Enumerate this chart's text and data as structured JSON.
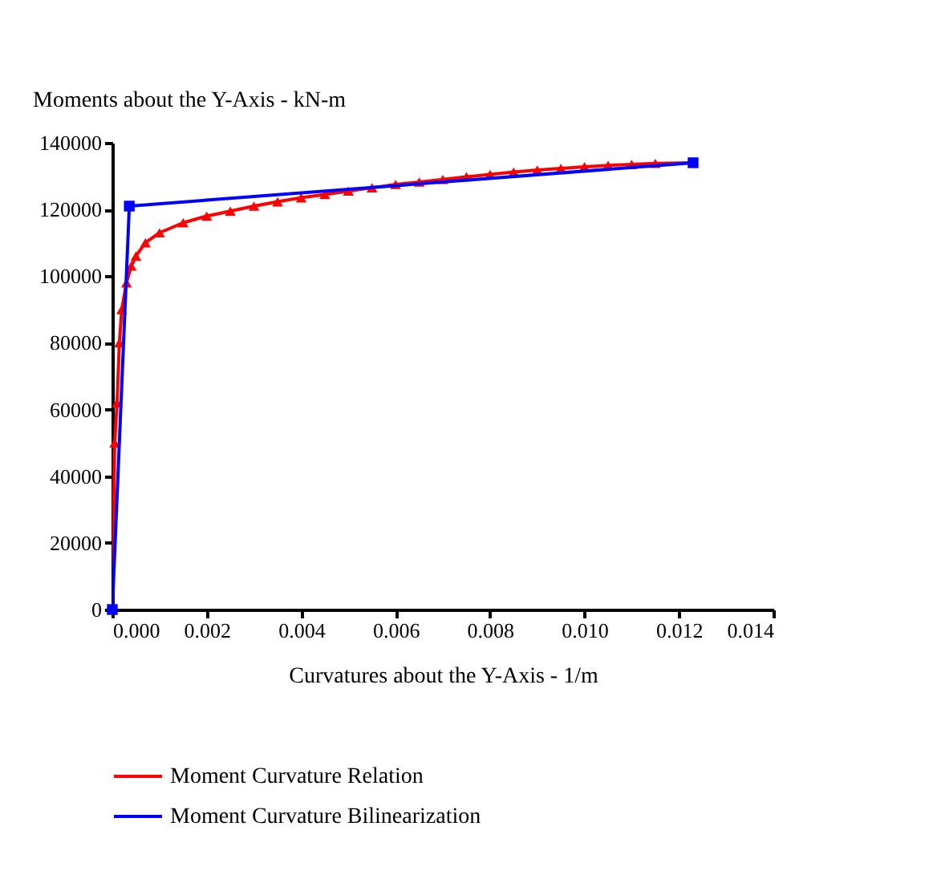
{
  "chart_data": {
    "type": "line",
    "xlabel": "Curvatures about the Y-Axis - 1/m",
    "ylabel": "Moments about the Y-Axis - kN-m",
    "xlim": [
      0,
      0.014
    ],
    "ylim": [
      0,
      140000
    ],
    "xticks": [
      {
        "value": 0,
        "label": "0.000"
      },
      {
        "value": 0.002,
        "label": "0.002"
      },
      {
        "value": 0.004,
        "label": "0.004"
      },
      {
        "value": 0.006,
        "label": "0.006"
      },
      {
        "value": 0.008,
        "label": "0.008"
      },
      {
        "value": 0.01,
        "label": "0.010"
      },
      {
        "value": 0.012,
        "label": "0.012"
      },
      {
        "value": 0.014,
        "label": "0.014"
      }
    ],
    "yticks": [
      0,
      20000,
      40000,
      60000,
      80000,
      100000,
      120000,
      140000
    ],
    "grid": false,
    "legend": "bottom",
    "series": [
      {
        "name": "Moment Curvature Relation",
        "color": "#ff0000",
        "marker": "triangle",
        "x": [
          0,
          5e-05,
          0.0001,
          0.00015,
          0.0002,
          0.0003,
          0.0004,
          0.0005,
          0.0007,
          0.001,
          0.0015,
          0.002,
          0.0025,
          0.003,
          0.0035,
          0.004,
          0.0045,
          0.005,
          0.0055,
          0.006,
          0.0065,
          0.007,
          0.0075,
          0.008,
          0.0085,
          0.009,
          0.0095,
          0.01,
          0.0105,
          0.011,
          0.0115,
          0.0123
        ],
        "values": [
          0,
          50000,
          62000,
          80000,
          90000,
          98000,
          103000,
          106000,
          110000,
          113000,
          116000,
          118000,
          119500,
          121000,
          122300,
          123500,
          124500,
          125500,
          126500,
          127500,
          128200,
          129000,
          129800,
          130500,
          131200,
          131800,
          132300,
          132800,
          133200,
          133500,
          133800,
          134000
        ]
      },
      {
        "name": "Moment Curvature Bilinearization",
        "color": "#0000ff",
        "marker": "square",
        "x": [
          0,
          0.00036,
          0.0123
        ],
        "values": [
          0,
          121000,
          134000
        ]
      }
    ]
  }
}
